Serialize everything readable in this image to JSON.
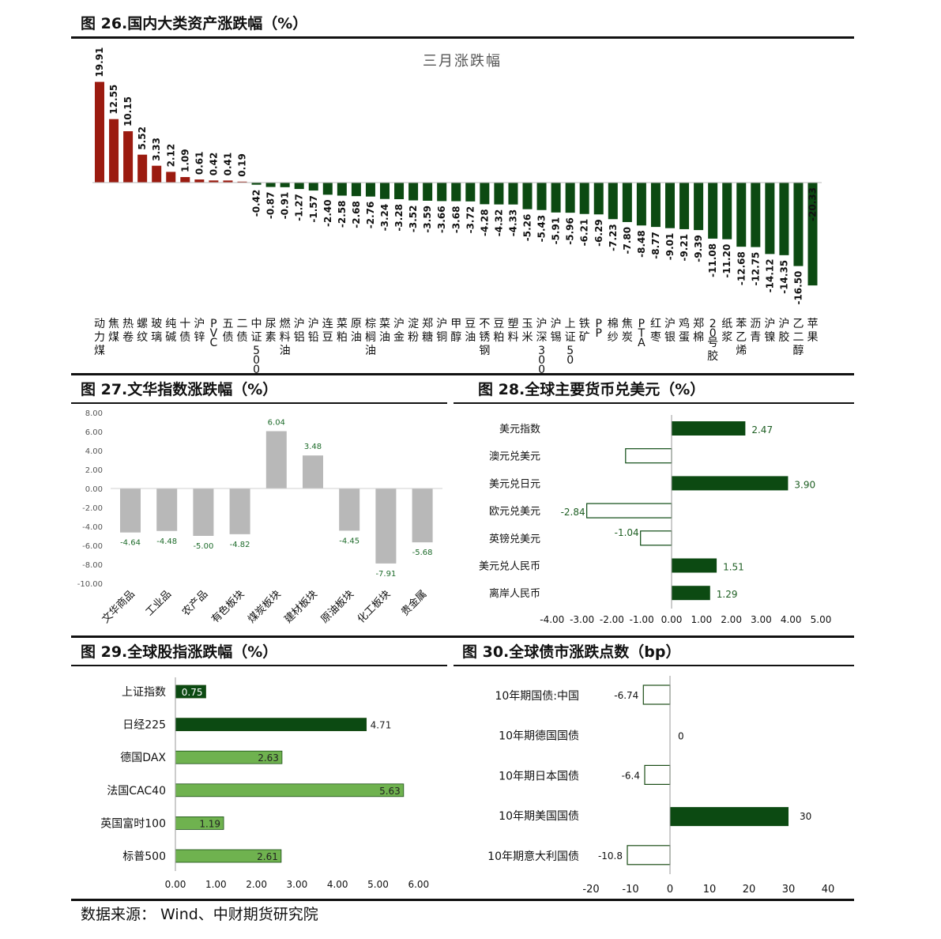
{
  "fig26": {
    "title": "图 26.国内大类资产涨跌幅（%）",
    "chart_data": {
      "type": "bar",
      "title": "三月涨跌幅",
      "categories": [
        "动力煤",
        "焦煤",
        "热卷",
        "螺纹",
        "玻璃",
        "纯碱",
        "十债",
        "沪锌",
        "PVC",
        "五债",
        "二债",
        "中证500",
        "尿素",
        "燃料油",
        "沪铝",
        "沪铅",
        "连豆",
        "菜粕",
        "原油",
        "棕榈油",
        "菜油",
        "沪金",
        "淀粉",
        "郑糖",
        "沪铜",
        "甲醇",
        "豆油",
        "不锈钢",
        "豆粕",
        "塑料",
        "玉米",
        "沪深300",
        "沪锡",
        "上证50",
        "铁矿",
        "PP",
        "棉纱",
        "焦炭",
        "PTA",
        "红枣",
        "沪银",
        "鸡蛋",
        "郑棉",
        "20号胶",
        "纸浆",
        "苯乙烯",
        "沥青",
        "沪镍",
        "沪胶",
        "乙二醇",
        "苹果"
      ],
      "values": [
        19.91,
        12.55,
        10.15,
        5.52,
        3.33,
        2.12,
        1.09,
        0.61,
        0.42,
        0.41,
        0.19,
        -0.42,
        -0.87,
        -0.91,
        -1.27,
        -1.57,
        -2.4,
        -2.58,
        -2.68,
        -2.76,
        -3.24,
        -3.28,
        -3.52,
        -3.59,
        -3.66,
        -3.68,
        -3.72,
        -4.28,
        -4.32,
        -4.33,
        -5.26,
        -5.43,
        -5.91,
        -5.96,
        -6.21,
        -6.29,
        -7.23,
        -7.8,
        -8.48,
        -8.77,
        -9.01,
        -9.21,
        -9.39,
        -11.08,
        -11.2,
        -12.68,
        -12.75,
        -14.12,
        -14.35,
        -16.5,
        -20.33
      ],
      "value_labels": [
        "19.91",
        "12.55",
        "10.15",
        "5.52",
        "3.33",
        "2.12",
        "1.09",
        "0.61",
        "0.42",
        "0.41",
        "0.19",
        "-0.42",
        "-0.87",
        "-0.91",
        "-1.27",
        "-1.57",
        "-2.40",
        "-2.58",
        "-2.68",
        "-2.76",
        "-3.24",
        "-3.28",
        "-3.52",
        "-3.59",
        "-3.66",
        "-3.68",
        "-3.72",
        "-4.28",
        "-4.32",
        "-4.33",
        "-5.26",
        "-5.43",
        "-5.91",
        "-5.96",
        "-6.21",
        "-6.29",
        "-7.23",
        "-7.80",
        "-8.48",
        "-8.77",
        "-9.01",
        "-9.21",
        "-9.39",
        "-11.08",
        "-11.20",
        "-12.68",
        "-12.75",
        "-14.12",
        "-14.35",
        "-16.50",
        "-20.33"
      ],
      "positive_color": "#9b1b10",
      "negative_color": "#0c4a12"
    }
  },
  "fig27": {
    "title": "图 27.文华指数涨跌幅（%）",
    "chart_data": {
      "type": "bar",
      "categories": [
        "文华商品",
        "工业品",
        "农产品",
        "有色板块",
        "煤炭板块",
        "建材板块",
        "原油板块",
        "化工板块",
        "贵金属"
      ],
      "values": [
        -4.64,
        -4.48,
        -5.0,
        -4.82,
        6.04,
        3.48,
        -4.45,
        -7.91,
        -5.68
      ],
      "value_labels": [
        "-4.64",
        "-4.48",
        "-5.00",
        "-4.82",
        "6.04",
        "3.48",
        "-4.45",
        "-7.91",
        "-5.68"
      ],
      "ylim": [
        -10,
        8
      ],
      "yticks": [
        "8.00",
        "6.00",
        "4.00",
        "2.00",
        "0.00",
        "-2.00",
        "-4.00",
        "-6.00",
        "-8.00",
        "-10.00"
      ],
      "bar_color": "#b8b8b8",
      "label_color": "#1d6b2a"
    }
  },
  "fig28": {
    "title": "图 28.全球主要货币兑美元（%）",
    "chart_data": {
      "type": "bar",
      "orientation": "horizontal",
      "categories": [
        "美元指数",
        "澳元兑美元",
        "美元兑日元",
        "欧元兑美元",
        "英镑兑美元",
        "美元兑人民币",
        "离岸人民币"
      ],
      "values": [
        2.47,
        -1.54,
        3.9,
        -2.84,
        -1.04,
        1.51,
        1.29
      ],
      "value_labels": [
        "2.47",
        "",
        "3.90",
        "-2.84",
        "-1.04",
        "1.51",
        "1.29"
      ],
      "xlim": [
        -4,
        5
      ],
      "xticks": [
        "-4.00",
        "-3.00",
        "-2.00",
        "-1.00",
        "0.00",
        "1.00",
        "2.00",
        "3.00",
        "4.00",
        "5.00"
      ],
      "fill_color": "#0c4a12"
    }
  },
  "fig29": {
    "title": "图 29.全球股指涨跌幅（%）",
    "chart_data": {
      "type": "bar",
      "orientation": "horizontal",
      "categories": [
        "上证指数",
        "日经225",
        "德国DAX",
        "法国CAC40",
        "英国富时100",
        "标普500"
      ],
      "values": [
        0.75,
        4.71,
        2.63,
        5.63,
        1.19,
        2.61
      ],
      "value_labels": [
        "0.75",
        "4.71",
        "2.63",
        "5.63",
        "1.19",
        "2.61"
      ],
      "xlim": [
        0,
        6
      ],
      "xticks": [
        "0.00",
        "1.00",
        "2.00",
        "3.00",
        "4.00",
        "5.00",
        "6.00"
      ],
      "bar_colors": [
        "#0c4a12",
        "#0c4a12",
        "#6fb24f",
        "#6fb24f",
        "#6fb24f",
        "#6fb24f"
      ]
    }
  },
  "fig30": {
    "title": "图 30.全球债市涨跌点数（bp）",
    "chart_data": {
      "type": "bar",
      "orientation": "horizontal",
      "categories": [
        "10年期国债:中国",
        "10年期德国国债",
        "10年期日本国债",
        "10年期美国国债",
        "10年期意大利国债"
      ],
      "values": [
        -6.74,
        0,
        -6.4,
        30,
        -10.8
      ],
      "value_labels": [
        "-6.74",
        "0",
        "-6.4",
        "30",
        "-10.8"
      ],
      "xlim": [
        -20,
        40
      ],
      "xticks": [
        "-20",
        "-10",
        "0",
        "10",
        "20",
        "30",
        "40"
      ],
      "fill_color": "#0c4a12"
    }
  },
  "source": "数据来源： Wind、中财期货研究院"
}
